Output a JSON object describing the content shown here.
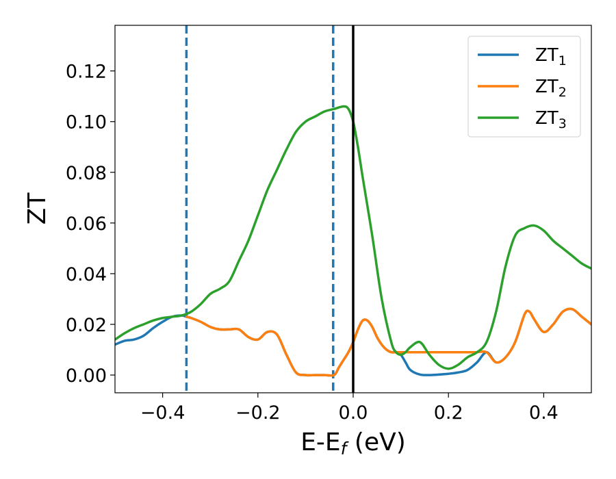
{
  "chart_data": {
    "type": "line",
    "xlabel": "E-E",
    "xlabel_sub": "f",
    "xlabel_unit": " (eV)",
    "ylabel": "ZT",
    "xlim": [
      -0.5,
      0.5
    ],
    "ylim": [
      -0.007,
      0.138
    ],
    "xticks": [
      -0.4,
      -0.2,
      0.0,
      0.2,
      0.4
    ],
    "xtick_labels": [
      "−0.4",
      "−0.2",
      "0.0",
      "0.2",
      "0.4"
    ],
    "yticks": [
      0.0,
      0.02,
      0.04,
      0.06,
      0.08,
      0.1,
      0.12
    ],
    "ytick_labels": [
      "0.00",
      "0.02",
      "0.04",
      "0.06",
      "0.08",
      "0.10",
      "0.12"
    ],
    "grid": false,
    "legend_position": "top-right",
    "vertical_lines": [
      {
        "x": -0.35,
        "style": "dashed",
        "color": "#1f77b4"
      },
      {
        "x": -0.042,
        "style": "dashed",
        "color": "#1f77b4"
      },
      {
        "x": 0.0,
        "style": "solid",
        "color": "#000000"
      }
    ],
    "series": [
      {
        "name": "ZT",
        "name_sub": "1",
        "color": "#1f77b4",
        "x": [
          -0.5,
          -0.48,
          -0.46,
          -0.44,
          -0.42,
          -0.4,
          -0.38,
          -0.36,
          -0.35,
          -0.34,
          -0.32,
          -0.3,
          -0.28,
          -0.26,
          -0.24,
          -0.22,
          -0.2,
          -0.18,
          -0.16,
          -0.14,
          -0.12,
          -0.1,
          -0.08,
          -0.06,
          -0.04,
          -0.03,
          -0.02,
          -0.01,
          0.0,
          0.01,
          0.02,
          0.03,
          0.04,
          0.05,
          0.06,
          0.07,
          0.08,
          0.09,
          0.1,
          0.11,
          0.12,
          0.14,
          0.16,
          0.18,
          0.2,
          0.22,
          0.24,
          0.26,
          0.28,
          0.3,
          0.32,
          0.34,
          0.36,
          0.37,
          0.38,
          0.4,
          0.42,
          0.44,
          0.46,
          0.48,
          0.5
        ],
        "y": [
          0.012,
          0.0135,
          0.014,
          0.0155,
          0.0185,
          0.021,
          0.023,
          0.0235,
          0.023,
          0.0225,
          0.021,
          0.019,
          0.018,
          0.018,
          0.018,
          0.015,
          0.014,
          0.017,
          0.016,
          0.008,
          0.001,
          0.0,
          0.0,
          0.0,
          0.0,
          0.003,
          0.006,
          0.009,
          0.013,
          0.018,
          0.0215,
          0.0215,
          0.019,
          0.015,
          0.012,
          0.01,
          0.009,
          0.009,
          0.008,
          0.005,
          0.002,
          0.0002,
          0.0,
          0.0002,
          0.0005,
          0.001,
          0.002,
          0.005,
          0.009,
          0.005,
          0.007,
          0.013,
          0.024,
          0.025,
          0.022,
          0.017,
          0.02,
          0.025,
          0.026,
          0.023,
          0.02
        ]
      },
      {
        "name": "ZT",
        "name_sub": "2",
        "color": "#ff7f0e",
        "x": [
          -0.35,
          -0.34,
          -0.32,
          -0.3,
          -0.28,
          -0.26,
          -0.24,
          -0.22,
          -0.2,
          -0.18,
          -0.16,
          -0.14,
          -0.12,
          -0.1,
          -0.08,
          -0.06,
          -0.04,
          -0.03,
          -0.02,
          -0.01,
          0.0,
          0.01,
          0.02,
          0.03,
          0.04,
          0.05,
          0.06,
          0.07,
          0.08,
          0.09,
          0.1,
          0.12,
          0.14,
          0.16,
          0.18,
          0.2,
          0.22,
          0.24,
          0.26,
          0.28,
          0.3,
          0.32,
          0.34,
          0.36,
          0.37,
          0.38,
          0.4,
          0.42,
          0.44,
          0.46,
          0.48,
          0.5
        ],
        "y": [
          0.023,
          0.0225,
          0.021,
          0.019,
          0.018,
          0.018,
          0.018,
          0.015,
          0.014,
          0.017,
          0.016,
          0.008,
          0.001,
          0.0,
          0.0,
          0.0,
          0.0,
          0.003,
          0.006,
          0.009,
          0.013,
          0.018,
          0.0215,
          0.0215,
          0.019,
          0.015,
          0.012,
          0.01,
          0.009,
          0.009,
          0.009,
          0.009,
          0.009,
          0.009,
          0.009,
          0.009,
          0.009,
          0.009,
          0.009,
          0.009,
          0.005,
          0.007,
          0.013,
          0.024,
          0.025,
          0.022,
          0.017,
          0.02,
          0.025,
          0.026,
          0.023,
          0.02
        ]
      },
      {
        "name": "ZT",
        "name_sub": "3",
        "color": "#2ca02c",
        "x": [
          -0.5,
          -0.48,
          -0.46,
          -0.44,
          -0.42,
          -0.4,
          -0.38,
          -0.36,
          -0.34,
          -0.32,
          -0.3,
          -0.28,
          -0.26,
          -0.24,
          -0.22,
          -0.2,
          -0.18,
          -0.16,
          -0.14,
          -0.12,
          -0.1,
          -0.08,
          -0.06,
          -0.04,
          -0.02,
          -0.01,
          0.0,
          0.01,
          0.02,
          0.04,
          0.06,
          0.08,
          0.09,
          0.1,
          0.11,
          0.12,
          0.14,
          0.16,
          0.18,
          0.2,
          0.22,
          0.24,
          0.26,
          0.28,
          0.3,
          0.32,
          0.34,
          0.36,
          0.38,
          0.4,
          0.42,
          0.44,
          0.46,
          0.48,
          0.5
        ],
        "y": [
          0.014,
          0.0165,
          0.0185,
          0.02,
          0.0215,
          0.0225,
          0.023,
          0.0235,
          0.025,
          0.028,
          0.032,
          0.034,
          0.037,
          0.045,
          0.053,
          0.063,
          0.073,
          0.081,
          0.089,
          0.096,
          0.1,
          0.102,
          0.104,
          0.105,
          0.106,
          0.105,
          0.1,
          0.09,
          0.078,
          0.055,
          0.03,
          0.013,
          0.009,
          0.008,
          0.009,
          0.011,
          0.013,
          0.008,
          0.004,
          0.0025,
          0.004,
          0.007,
          0.009,
          0.013,
          0.025,
          0.043,
          0.055,
          0.058,
          0.059,
          0.057,
          0.053,
          0.05,
          0.047,
          0.044,
          0.042
        ]
      }
    ]
  }
}
